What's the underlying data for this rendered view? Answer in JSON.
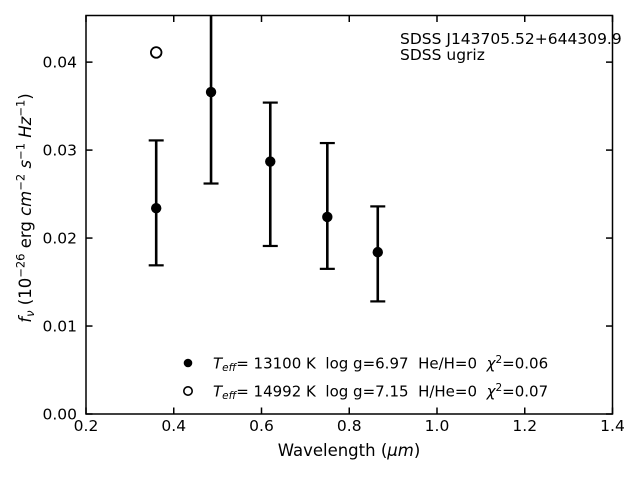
{
  "figure": {
    "background": "#ffffff",
    "foreground": "#000000"
  },
  "annotation": {
    "object_name": "SDSS J143705.52+644309.9",
    "filter_set": "SDSS ugriz"
  },
  "chart_data": {
    "type": "scatter",
    "title": "",
    "xlabel": "Wavelength (μm)",
    "ylabel": "f_ν (10^−26 erg cm^−2 s^−1 Hz^−1)",
    "xlabel_segments": [
      {
        "t": "Wavelength ("
      },
      {
        "t": "μm",
        "i": true
      },
      {
        "t": ")"
      }
    ],
    "ylabel_segments": [
      {
        "t": "f",
        "i": true
      },
      {
        "t": "ν",
        "i": true,
        "sub": true
      },
      {
        "t": " (10"
      },
      {
        "t": "−26",
        "sup": true
      },
      {
        "t": " erg "
      },
      {
        "t": "cm",
        "i": true
      },
      {
        "t": "−2",
        "sup": true
      },
      {
        "t": " "
      },
      {
        "t": "s",
        "i": true
      },
      {
        "t": "−1",
        "sup": true
      },
      {
        "t": " "
      },
      {
        "t": "Hz",
        "i": true
      },
      {
        "t": "−1",
        "sup": true
      },
      {
        "t": ")"
      }
    ],
    "xlim": [
      0.2,
      1.4
    ],
    "ylim": [
      0.0,
      0.0453
    ],
    "xticks": [
      0.2,
      0.4,
      0.6,
      0.8,
      1.0,
      1.2,
      1.4
    ],
    "xtick_labels": [
      "0.2",
      "0.4",
      "0.6",
      "0.8",
      "1.0",
      "1.2",
      "1.4"
    ],
    "yticks": [
      0.0,
      0.01,
      0.02,
      0.03,
      0.04
    ],
    "ytick_labels": [
      "0.00",
      "0.01",
      "0.02",
      "0.03",
      "0.04"
    ],
    "grid": false,
    "tick_style": "inward, mirrored on all four spines",
    "annotation_lines": [
      "SDSS J143705.52+644309.9",
      "SDSS ugriz"
    ],
    "series": [
      {
        "name": "Teff= 13100 K log g=6.97 He/H=0 chi2=0.06",
        "marker": "filled-circle",
        "color": "#000000",
        "points": [
          {
            "x": 0.36,
            "y": 0.0234,
            "err_lo": 0.0169,
            "err_hi": 0.0311
          },
          {
            "x": 0.485,
            "y": 0.0366,
            "err_lo": 0.0262,
            "err_hi": 0.047,
            "err_hi_clipped": true
          },
          {
            "x": 0.62,
            "y": 0.0287,
            "err_lo": 0.0191,
            "err_hi": 0.0354
          },
          {
            "x": 0.75,
            "y": 0.0224,
            "err_lo": 0.0165,
            "err_hi": 0.0308
          },
          {
            "x": 0.865,
            "y": 0.0184,
            "err_lo": 0.0128,
            "err_hi": 0.0236
          }
        ]
      },
      {
        "name": "Teff= 14992 K log g=7.15 H/He=0 chi2=0.07",
        "marker": "open-circle",
        "color": "#000000",
        "points": [
          {
            "x": 0.36,
            "y": 0.0411
          }
        ]
      }
    ],
    "legend": {
      "position": "lower center, inside axes, no frame",
      "entries": [
        {
          "marker": "filled-circle",
          "segments": [
            {
              "t": "T",
              "i": true
            },
            {
              "t": "eff",
              "i": true,
              "sub": true
            },
            {
              "t": "= 13100 K  log g=6.97  He/H=0  "
            },
            {
              "t": "χ",
              "i": true
            },
            {
              "t": "2",
              "sup": true
            },
            {
              "t": "=0.06"
            }
          ]
        },
        {
          "marker": "open-circle",
          "segments": [
            {
              "t": "T",
              "i": true
            },
            {
              "t": "eff",
              "i": true,
              "sub": true
            },
            {
              "t": "= 14992 K  log g=7.15  H/He=0  "
            },
            {
              "t": "χ",
              "i": true
            },
            {
              "t": "2",
              "sup": true
            },
            {
              "t": "=0.07"
            }
          ]
        }
      ]
    }
  }
}
